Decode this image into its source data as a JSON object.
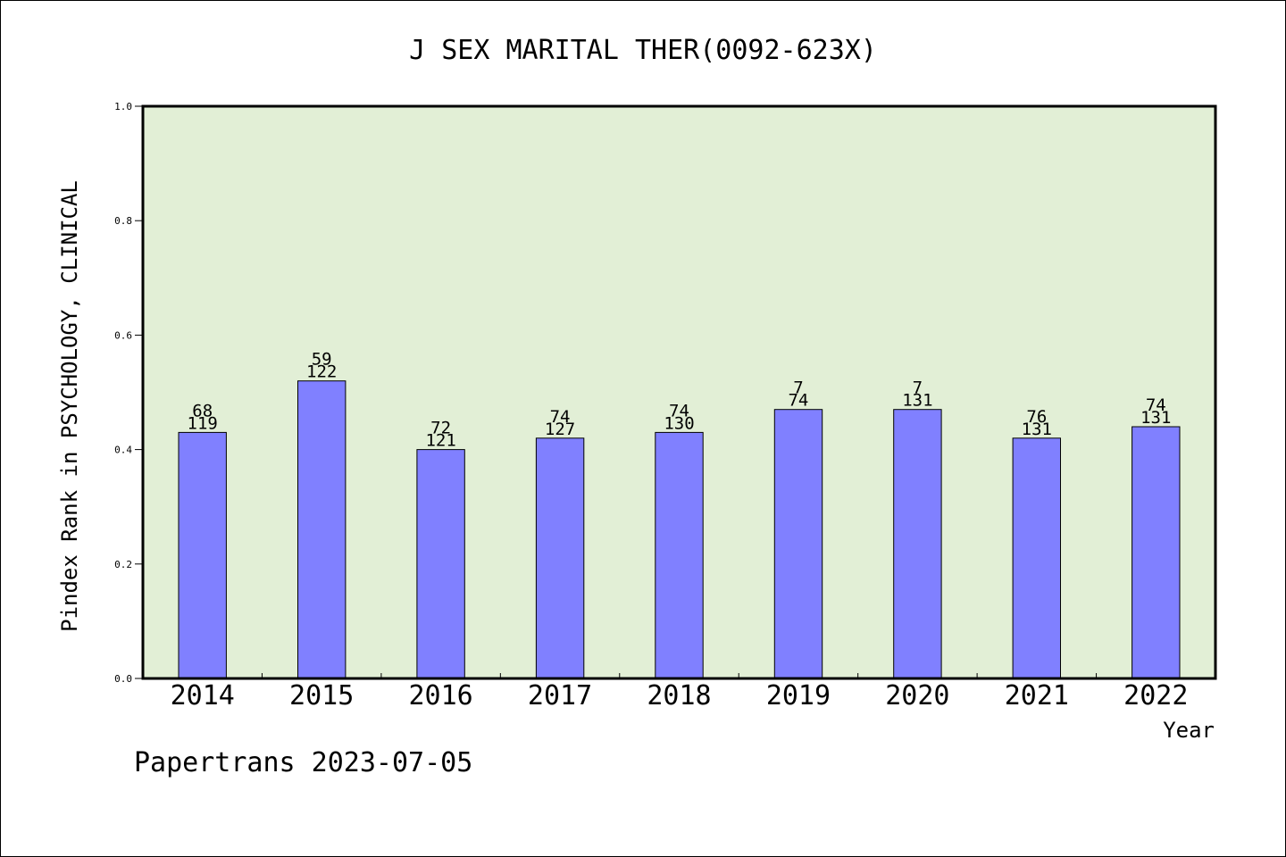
{
  "chart_data": {
    "type": "bar",
    "title": "J SEX MARITAL THER(0092-623X)",
    "xlabel": "Year",
    "ylabel": "Pindex Rank in PSYCHOLOGY, CLINICAL",
    "ylim": [
      0,
      1.0
    ],
    "yticks": [
      "0.0",
      "0.2",
      "0.4",
      "0.6",
      "0.8",
      "1.0"
    ],
    "categories": [
      "2014",
      "2015",
      "2016",
      "2017",
      "2018",
      "2019",
      "2020",
      "2021",
      "2022"
    ],
    "values": [
      0.43,
      0.52,
      0.4,
      0.42,
      0.43,
      0.47,
      0.47,
      0.42,
      0.44
    ],
    "rank_labels": [
      "68",
      "59",
      "72",
      "74",
      "74",
      "7",
      "7",
      "76",
      "74"
    ],
    "total_labels": [
      "119",
      "122",
      "121",
      "127",
      "130",
      "74",
      "131",
      "131",
      "131"
    ],
    "grid": false,
    "colors": {
      "plot_bg": "#e2efd6",
      "bar": "#8080ff",
      "bar_edge": "#000000"
    }
  },
  "footer": {
    "text": "Papertrans 2023-07-05"
  }
}
